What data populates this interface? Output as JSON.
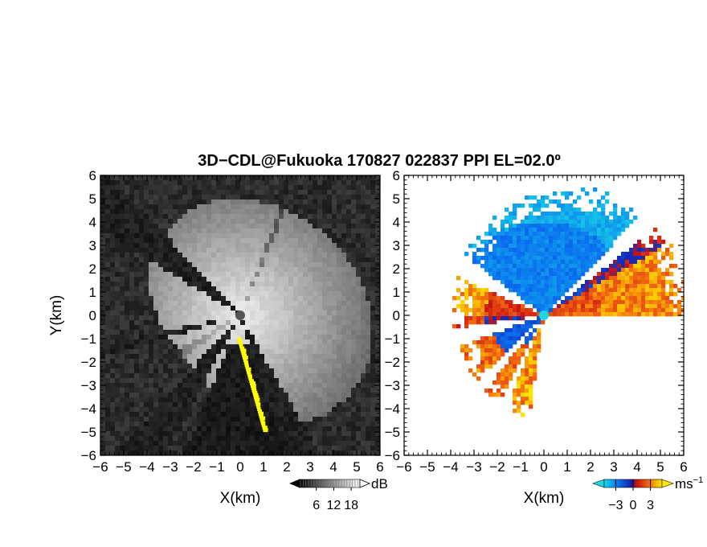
{
  "figure": {
    "title": "3D−CDL@Fukuoka 170827 022837 PPI EL=02.0º"
  },
  "chart_data": [
    {
      "type": "heatmap",
      "panel": "left",
      "quantity": "reflectivity / SNR (grayscale)",
      "xlabel": "X(km)",
      "ylabel": "Y(km)",
      "xlim": [
        -6,
        6
      ],
      "ylim": [
        -6,
        6
      ],
      "xticks": [
        "−6",
        "−5",
        "−4",
        "−3",
        "−2",
        "−1",
        "0",
        "1",
        "2",
        "3",
        "4",
        "5",
        "6"
      ],
      "yticks": [
        "6",
        "5",
        "4",
        "3",
        "2",
        "1",
        "0",
        "−1",
        "−2",
        "−3",
        "−4",
        "−5",
        "−6"
      ],
      "colorbar": {
        "unit": "dB",
        "ticks": [
          "6",
          "12",
          "18"
        ],
        "range": [
          0,
          21
        ],
        "colormap": "gray"
      },
      "highlight_color": "#ffff00",
      "sector_gaps_deg_from_east": [
        [
          133,
          149
        ],
        [
          192,
          197
        ],
        [
          228,
          242
        ],
        [
          288,
          300
        ]
      ]
    },
    {
      "type": "heatmap",
      "panel": "right",
      "quantity": "Doppler velocity",
      "xlabel": "X(km)",
      "ylabel": "",
      "xlim": [
        -6,
        6
      ],
      "ylim": [
        -6,
        6
      ],
      "xticks": [
        "−6",
        "−5",
        "−4",
        "−3",
        "−2",
        "−1",
        "0",
        "1",
        "2",
        "3",
        "4",
        "5",
        "6"
      ],
      "yticks": [
        "6",
        "5",
        "4",
        "3",
        "2",
        "1",
        "0",
        "−1",
        "−2",
        "−3",
        "−4",
        "−5",
        "−6"
      ],
      "colorbar": {
        "unit": "ms",
        "unit_exp": "−1",
        "ticks": [
          "−3",
          "0",
          "3"
        ],
        "range": [
          -5,
          5
        ],
        "colormap": "blue-red-yellow"
      },
      "sector_gaps_deg_from_east": [
        [
          38,
          46
        ],
        [
          143,
          156
        ],
        [
          188,
          200
        ],
        [
          225,
          232
        ],
        [
          243,
          248
        ],
        [
          262,
          360
        ]
      ]
    }
  ],
  "colors": {
    "velocity_neg": "#0a4fd8",
    "velocity_pos": "#f04a10",
    "velocity_max": "#ffe800",
    "center_marker_left": "#555555",
    "center_marker_right": "#19d8e6"
  }
}
